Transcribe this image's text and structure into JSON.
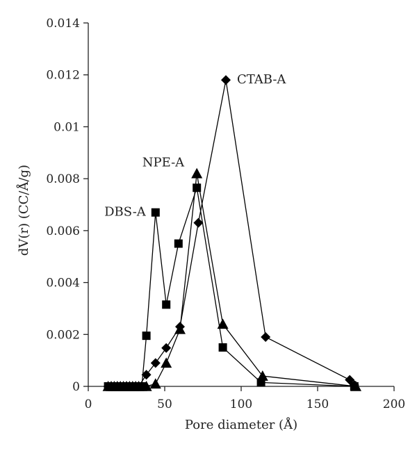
{
  "chart_data": {
    "type": "scatter",
    "title": "",
    "xlabel": "Pore diameter (Å)",
    "ylabel": "dV(r) (CC/Å/g)",
    "xlim": [
      0,
      200
    ],
    "ylim": [
      0,
      0.014
    ],
    "x_ticks": [
      0,
      50,
      100,
      150,
      200
    ],
    "x_tick_labels": [
      "0",
      "50",
      "100",
      "150",
      "200"
    ],
    "y_ticks": [
      0,
      0.002,
      0.004,
      0.006,
      0.008,
      0.01,
      0.012,
      0.014
    ],
    "y_tick_labels": [
      "0",
      "0.002",
      "0.004",
      "0.006",
      "0.008",
      "0.01",
      "0.012",
      "0.014"
    ],
    "grid": false,
    "legend": "none",
    "series": [
      {
        "name": "CTAB-A",
        "marker": "diamond",
        "x": [
          13,
          15,
          17,
          19,
          21,
          23,
          25,
          27,
          29,
          31,
          33,
          38,
          44,
          51,
          60,
          72,
          90,
          116,
          171,
          174
        ],
        "y": [
          0,
          0,
          0,
          0,
          0,
          0,
          0,
          0,
          0,
          0,
          0,
          0.00045,
          0.0009,
          0.00148,
          0.0023,
          0.0063,
          0.0118,
          0.0019,
          0.00025,
          5e-05
        ]
      },
      {
        "name": "NPE-A",
        "marker": "triangle",
        "x": [
          13,
          15,
          17,
          19,
          21,
          23,
          25,
          27,
          29,
          31,
          33,
          35,
          38,
          44,
          51,
          60,
          71,
          88,
          114,
          175
        ],
        "y": [
          0,
          0,
          0,
          0,
          0,
          0,
          0,
          0,
          0,
          0,
          0,
          0,
          0,
          0.0001,
          0.0009,
          0.0022,
          0.0082,
          0.0024,
          0.0004,
          0
        ]
      },
      {
        "name": "DBS-A",
        "marker": "square",
        "x": [
          13,
          15,
          17,
          19,
          21,
          23,
          25,
          27,
          29,
          31,
          33,
          35,
          38,
          44,
          51,
          59,
          71,
          88,
          113,
          174
        ],
        "y": [
          0,
          0,
          0,
          0,
          0,
          0,
          0,
          0,
          0,
          0,
          0,
          0,
          0.00195,
          0.0067,
          0.00315,
          0.0055,
          0.00765,
          0.0015,
          0.00015,
          0
        ]
      }
    ],
    "annotations": [
      {
        "text": "CTAB-A",
        "series": "CTAB-A"
      },
      {
        "text": "NPE-A",
        "series": "NPE-A"
      },
      {
        "text": "DBS-A",
        "series": "DBS-A"
      }
    ]
  }
}
